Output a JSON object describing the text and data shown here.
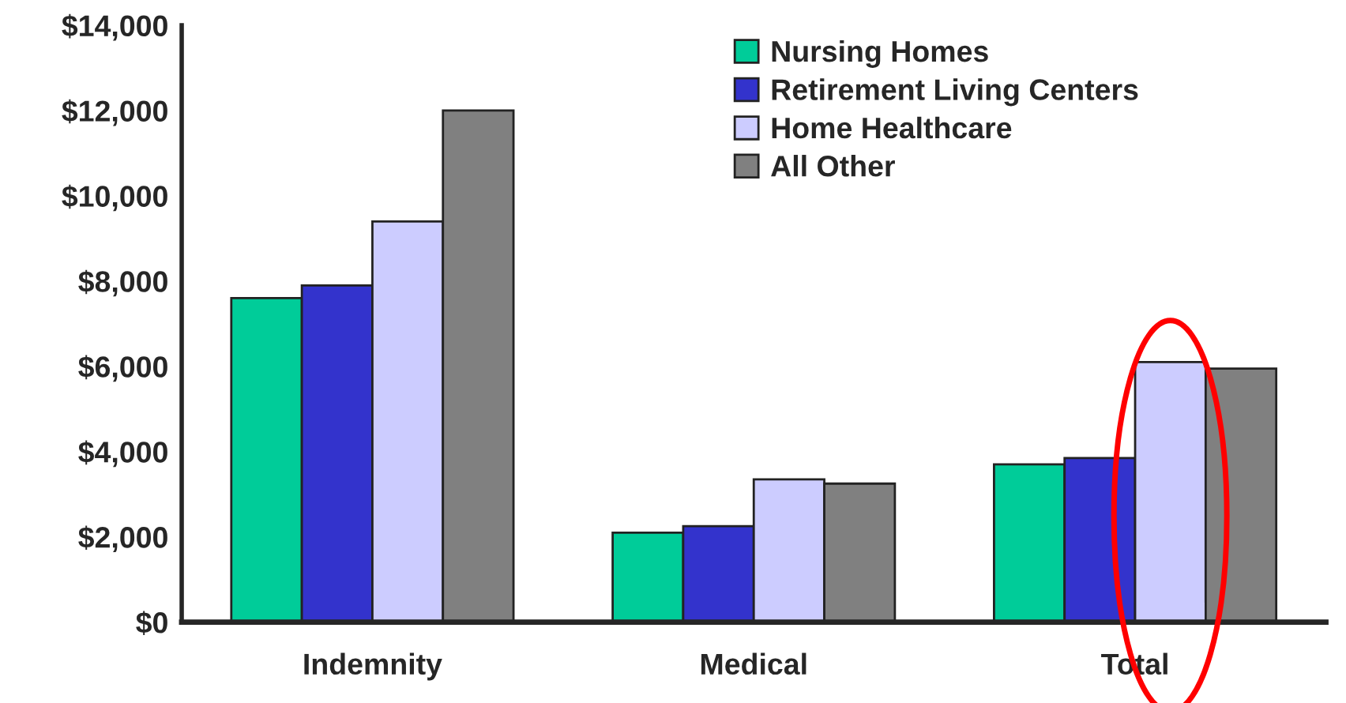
{
  "chart_data": {
    "type": "bar",
    "categories": [
      "Indemnity",
      "Medical",
      "Total"
    ],
    "series": [
      {
        "name": "Nursing Homes",
        "color": "#00cc99",
        "values": [
          7600,
          2100,
          3700
        ]
      },
      {
        "name": "Retirement Living Centers",
        "color": "#3333cc",
        "values": [
          7900,
          2250,
          3850
        ]
      },
      {
        "name": "Home Healthcare",
        "color": "#ccccff",
        "values": [
          9400,
          3350,
          6100
        ]
      },
      {
        "name": "All Other",
        "color": "#808080",
        "values": [
          12000,
          3250,
          5950
        ]
      }
    ],
    "ylim": [
      0,
      14000
    ],
    "yticks": [
      {
        "value": 0,
        "label": "$0"
      },
      {
        "value": 2000,
        "label": "$2,000"
      },
      {
        "value": 4000,
        "label": "$4,000"
      },
      {
        "value": 6000,
        "label": "$6,000"
      },
      {
        "value": 8000,
        "label": "$8,000"
      },
      {
        "value": 10000,
        "label": "$10,000"
      },
      {
        "value": 12000,
        "label": "$12,000"
      },
      {
        "value": 14000,
        "label": "$14,000"
      }
    ],
    "grid": false,
    "legend": "top right"
  }
}
